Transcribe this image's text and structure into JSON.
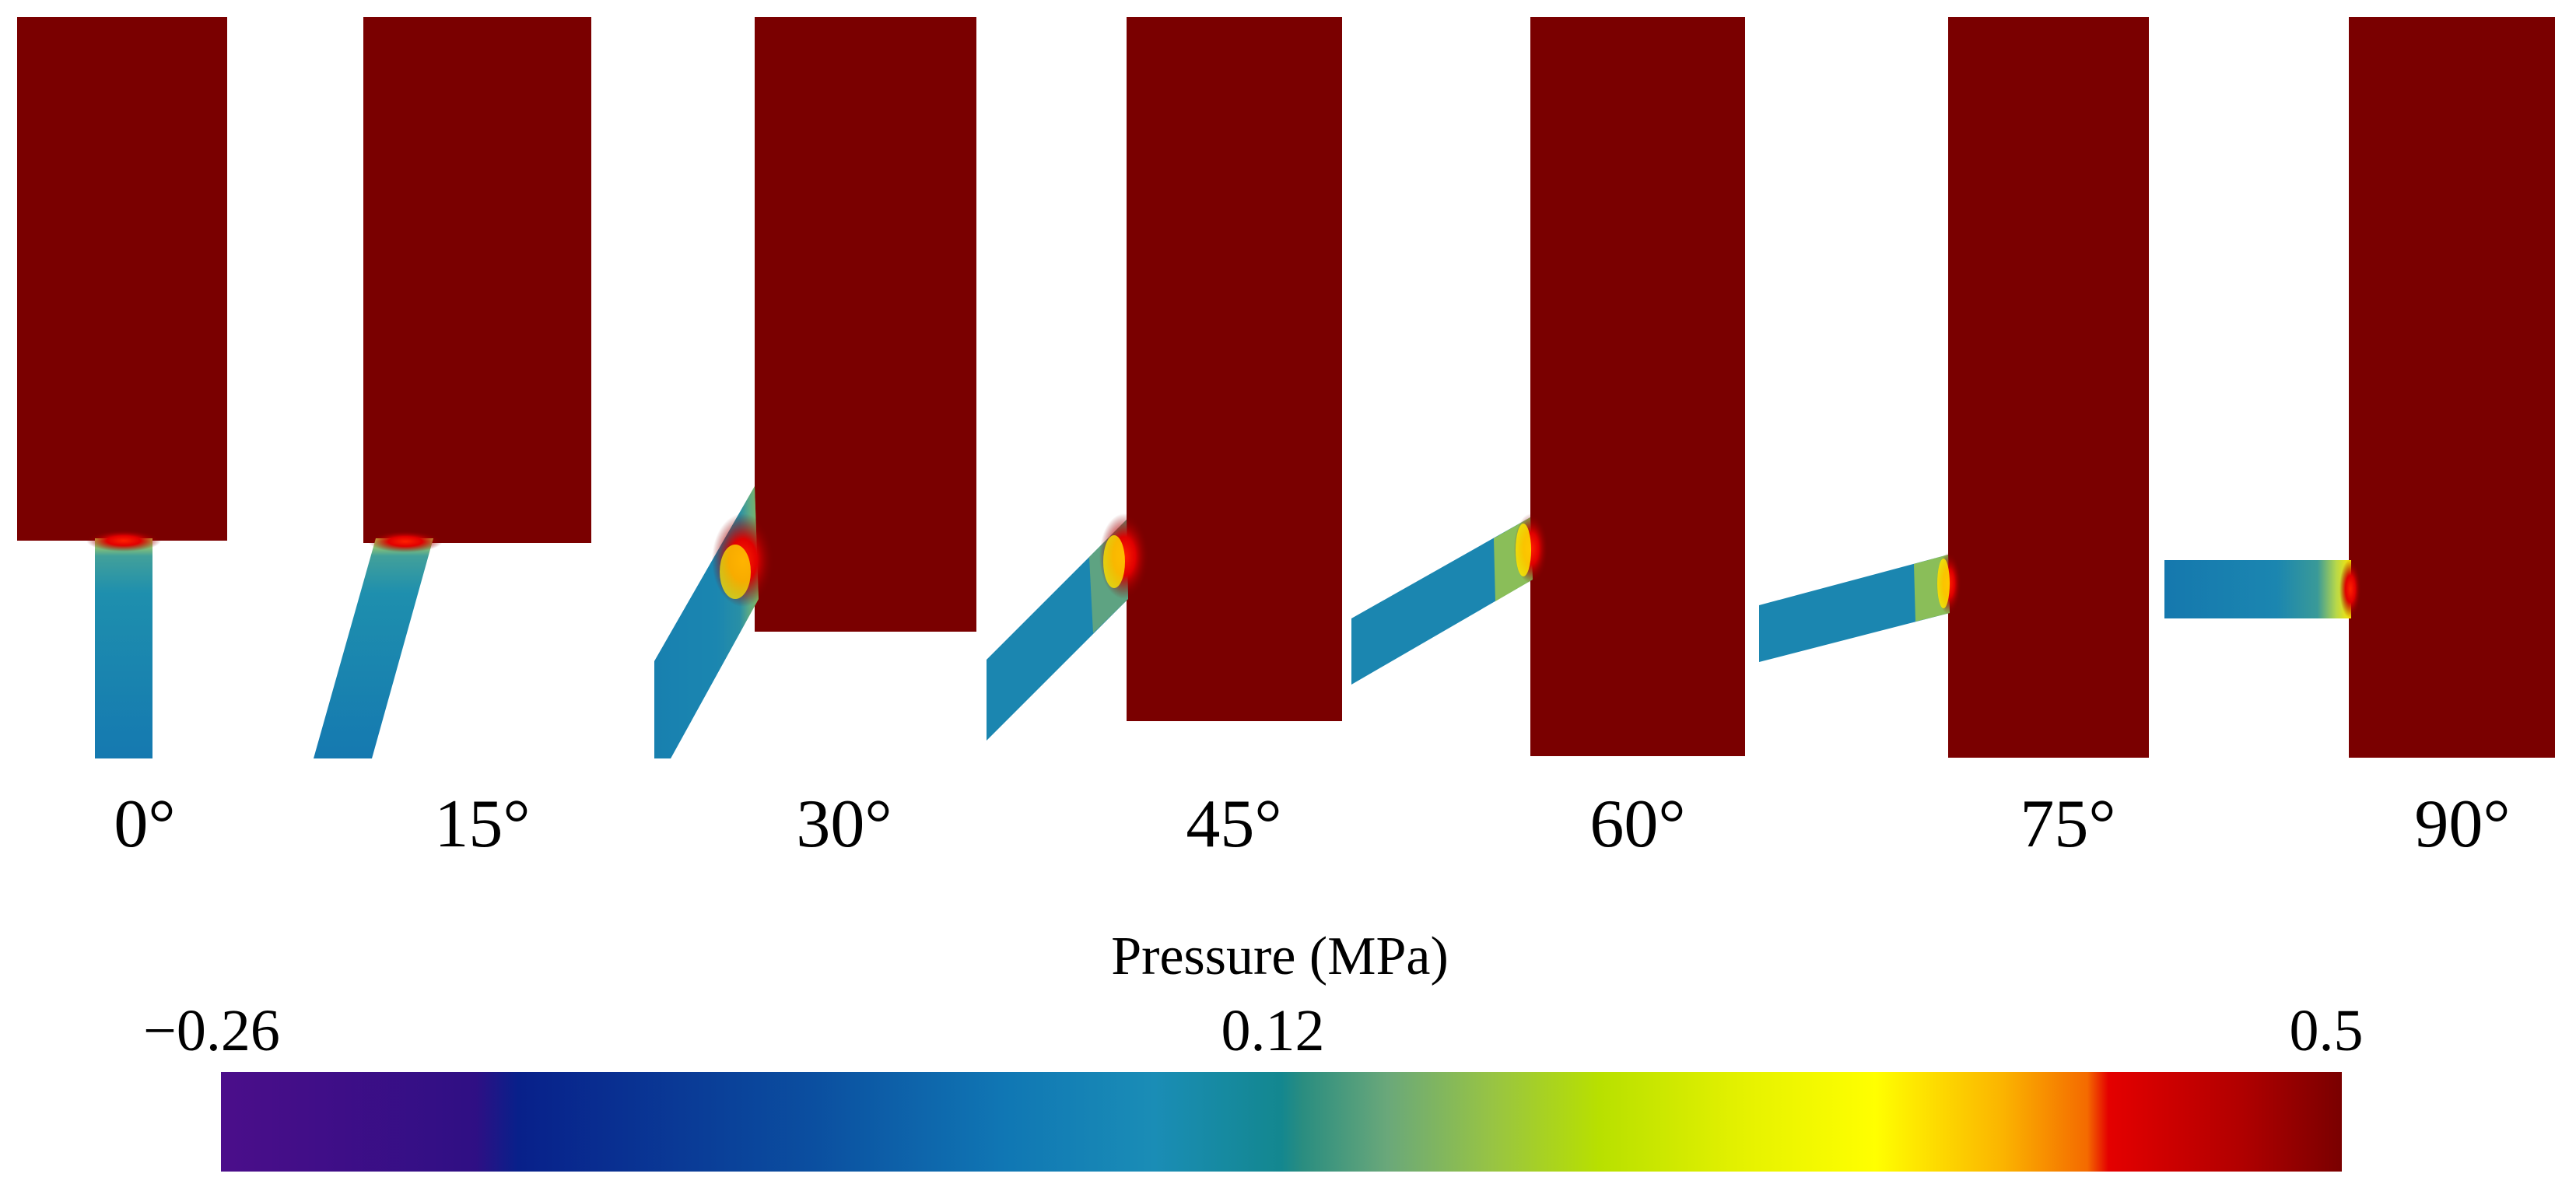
{
  "figure": {
    "panels": [
      {
        "angle_deg": 0,
        "label": "0°"
      },
      {
        "angle_deg": 15,
        "label": "15°"
      },
      {
        "angle_deg": 30,
        "label": "30°"
      },
      {
        "angle_deg": 45,
        "label": "45°"
      },
      {
        "angle_deg": 60,
        "label": "60°"
      },
      {
        "angle_deg": 75,
        "label": "75°"
      },
      {
        "angle_deg": 90,
        "label": "90°"
      }
    ],
    "colorbar": {
      "title": "Pressure (MPa)",
      "min_label": "−0.26",
      "mid_label": "0.12",
      "max_label": "0.5",
      "min": -0.26,
      "mid": 0.12,
      "max": 0.5
    }
  },
  "colors": {
    "high_pressure": "#7a0000",
    "hotspot": "#e80000",
    "nozzle_flow": "#1b86b0",
    "accent_yellow": "#ffff00"
  }
}
